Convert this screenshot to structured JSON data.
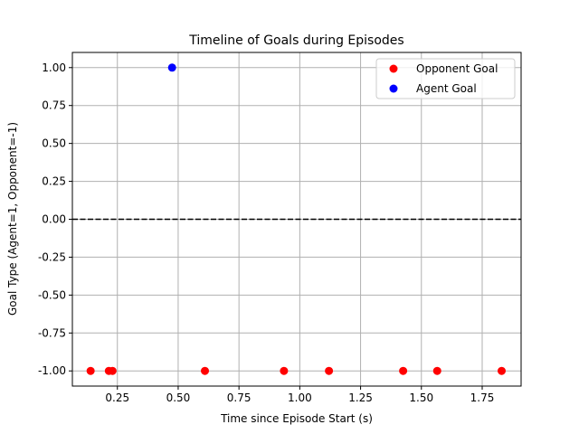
{
  "chart_data": {
    "type": "scatter",
    "title": "Timeline of Goals during Episodes",
    "xlabel": "Time since Episode Start (s)",
    "ylabel": "Goal Type (Agent=1, Opponent=-1)",
    "xlim": [
      0.065,
      1.91
    ],
    "ylim": [
      -1.1,
      1.1
    ],
    "xticks": [
      "0.25",
      "0.50",
      "0.75",
      "1.00",
      "1.25",
      "1.50",
      "1.75"
    ],
    "yticks": [
      "-1.00",
      "-0.75",
      "-0.50",
      "-0.25",
      "0.00",
      "0.25",
      "0.50",
      "0.75",
      "1.00"
    ],
    "grid": true,
    "legend_position": "top-right",
    "reference_line": {
      "y": 0,
      "style": "dashed",
      "color": "#000000"
    },
    "series": [
      {
        "name": "Opponent Goal",
        "color": "#ff0000",
        "x": [
          0.14,
          0.215,
          0.23,
          0.61,
          0.935,
          1.12,
          1.425,
          1.565,
          1.83
        ],
        "y": [
          -1,
          -1,
          -1,
          -1,
          -1,
          -1,
          -1,
          -1,
          -1
        ]
      },
      {
        "name": "Agent Goal",
        "color": "#0000ff",
        "x": [
          0.475
        ],
        "y": [
          1
        ]
      }
    ]
  }
}
